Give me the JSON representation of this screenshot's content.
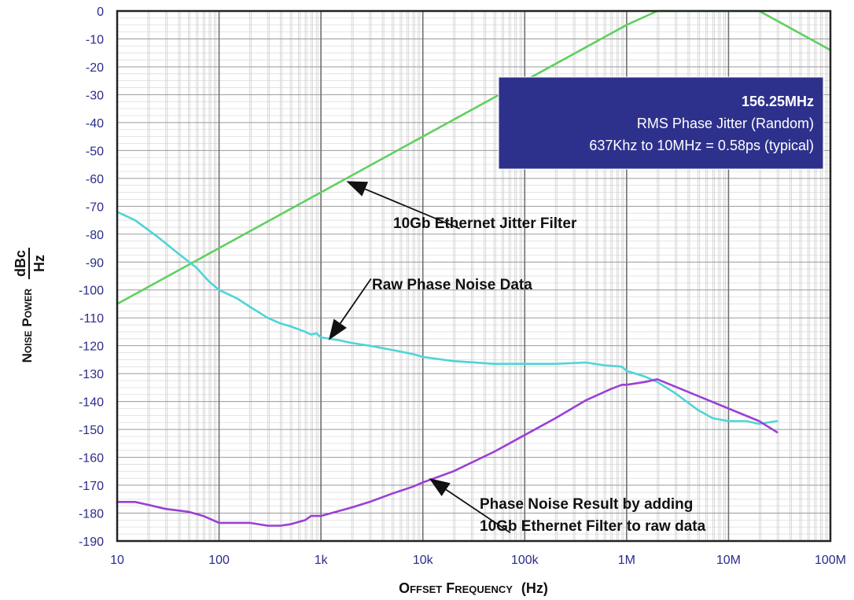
{
  "chart_data": {
    "type": "line",
    "x_scale": "log",
    "xlim": [
      10,
      100000000
    ],
    "ylim": [
      -190,
      0
    ],
    "grid": true,
    "y_ticks": [
      "0",
      "-10",
      "-20",
      "-30",
      "-40",
      "-50",
      "-60",
      "-70",
      "-80",
      "-90",
      "-100",
      "-110",
      "-120",
      "-130",
      "-140",
      "-150",
      "-160",
      "-170",
      "-180",
      "-190"
    ],
    "y_tick_values": [
      0,
      -10,
      -20,
      -30,
      -40,
      -50,
      -60,
      -70,
      -80,
      -90,
      -100,
      -110,
      -120,
      -130,
      -140,
      -150,
      -160,
      -170,
      -180,
      -190
    ],
    "x_ticks": [
      "10",
      "100",
      "1k",
      "10k",
      "100k",
      "1M",
      "10M",
      "100M"
    ],
    "x_tick_values": [
      10,
      100,
      1000,
      10000,
      100000,
      1000000,
      10000000,
      100000000
    ],
    "xlabel": {
      "main": "Offset Frequency",
      "unit": "(Hz)"
    },
    "ylabel": {
      "main": "Noise Power",
      "num": "dBc",
      "den": "Hz"
    },
    "series": [
      {
        "key": "filter",
        "color": "#5fd05f",
        "points": [
          [
            10,
            -105
          ],
          [
            100,
            -85
          ],
          [
            1000,
            -65
          ],
          [
            10000,
            -45
          ],
          [
            100000,
            -25
          ],
          [
            1000000,
            -5
          ],
          [
            2000000,
            0
          ],
          [
            20000000,
            0
          ],
          [
            30000000,
            -3.5
          ],
          [
            100000000,
            -14
          ]
        ]
      },
      {
        "key": "raw",
        "color": "#4fd4d8",
        "points": [
          [
            10,
            -72
          ],
          [
            15,
            -75
          ],
          [
            25,
            -81
          ],
          [
            40,
            -87
          ],
          [
            60,
            -92
          ],
          [
            80,
            -97
          ],
          [
            100,
            -100
          ],
          [
            150,
            -103
          ],
          [
            200,
            -106
          ],
          [
            300,
            -110
          ],
          [
            400,
            -112
          ],
          [
            500,
            -113
          ],
          [
            700,
            -115
          ],
          [
            800,
            -116
          ],
          [
            900,
            -115.5
          ],
          [
            1000,
            -117
          ],
          [
            1500,
            -118
          ],
          [
            2000,
            -119
          ],
          [
            3000,
            -120
          ],
          [
            5000,
            -121.5
          ],
          [
            8000,
            -123
          ],
          [
            10000,
            -124
          ],
          [
            20000,
            -125.5
          ],
          [
            50000,
            -126.5
          ],
          [
            100000,
            -126.5
          ],
          [
            200000,
            -126.5
          ],
          [
            400000,
            -126
          ],
          [
            600000,
            -127
          ],
          [
            900000,
            -127.5
          ],
          [
            1000000,
            -129
          ],
          [
            1500000,
            -131
          ],
          [
            2000000,
            -133
          ],
          [
            3000000,
            -137
          ],
          [
            5000000,
            -143
          ],
          [
            7000000,
            -146
          ],
          [
            10000000,
            -147
          ],
          [
            15000000,
            -147
          ],
          [
            20000000,
            -148
          ],
          [
            30000000,
            -147
          ]
        ]
      },
      {
        "key": "result",
        "color": "#9b3fd6",
        "points": [
          [
            10,
            -176
          ],
          [
            15,
            -176
          ],
          [
            20,
            -177
          ],
          [
            30,
            -178.5
          ],
          [
            50,
            -179.5
          ],
          [
            70,
            -181
          ],
          [
            100,
            -183.5
          ],
          [
            150,
            -183.5
          ],
          [
            200,
            -183.5
          ],
          [
            300,
            -184.5
          ],
          [
            400,
            -184.5
          ],
          [
            500,
            -184
          ],
          [
            700,
            -182.5
          ],
          [
            800,
            -181
          ],
          [
            900,
            -181
          ],
          [
            1000,
            -181
          ],
          [
            2000,
            -178
          ],
          [
            3000,
            -176
          ],
          [
            5000,
            -173
          ],
          [
            8000,
            -170.5
          ],
          [
            10000,
            -169
          ],
          [
            20000,
            -165
          ],
          [
            50000,
            -158
          ],
          [
            100000,
            -152
          ],
          [
            200000,
            -146
          ],
          [
            400000,
            -139.5
          ],
          [
            700000,
            -135.5
          ],
          [
            900000,
            -134
          ],
          [
            1000000,
            -134
          ],
          [
            1500000,
            -133
          ],
          [
            2000000,
            -132
          ],
          [
            20000000,
            -147
          ],
          [
            30000000,
            -151
          ]
        ]
      }
    ],
    "annotations": {
      "filter": "10Gb Ethernet Jitter Filter",
      "raw": "Raw Phase Noise Data",
      "result_line1": "Phase Noise Result by adding",
      "result_line2": "10Gb Ethernet Filter to raw data"
    },
    "info_box": {
      "title": "156.25MHz",
      "line1": "RMS Phase Jitter  (Random)",
      "line2": "637Khz to 10MHz = 0.58ps (typical)",
      "bg_color": "#2e318c"
    },
    "arrows": [
      {
        "to": [
          1770,
          -61
        ],
        "from": [
          23000,
          -78
        ]
      },
      {
        "to": [
          1190,
          -118
        ],
        "from": [
          3100,
          -96
        ]
      },
      {
        "to": [
          11500,
          -167.5
        ],
        "from": [
          72000,
          -187
        ]
      }
    ]
  }
}
